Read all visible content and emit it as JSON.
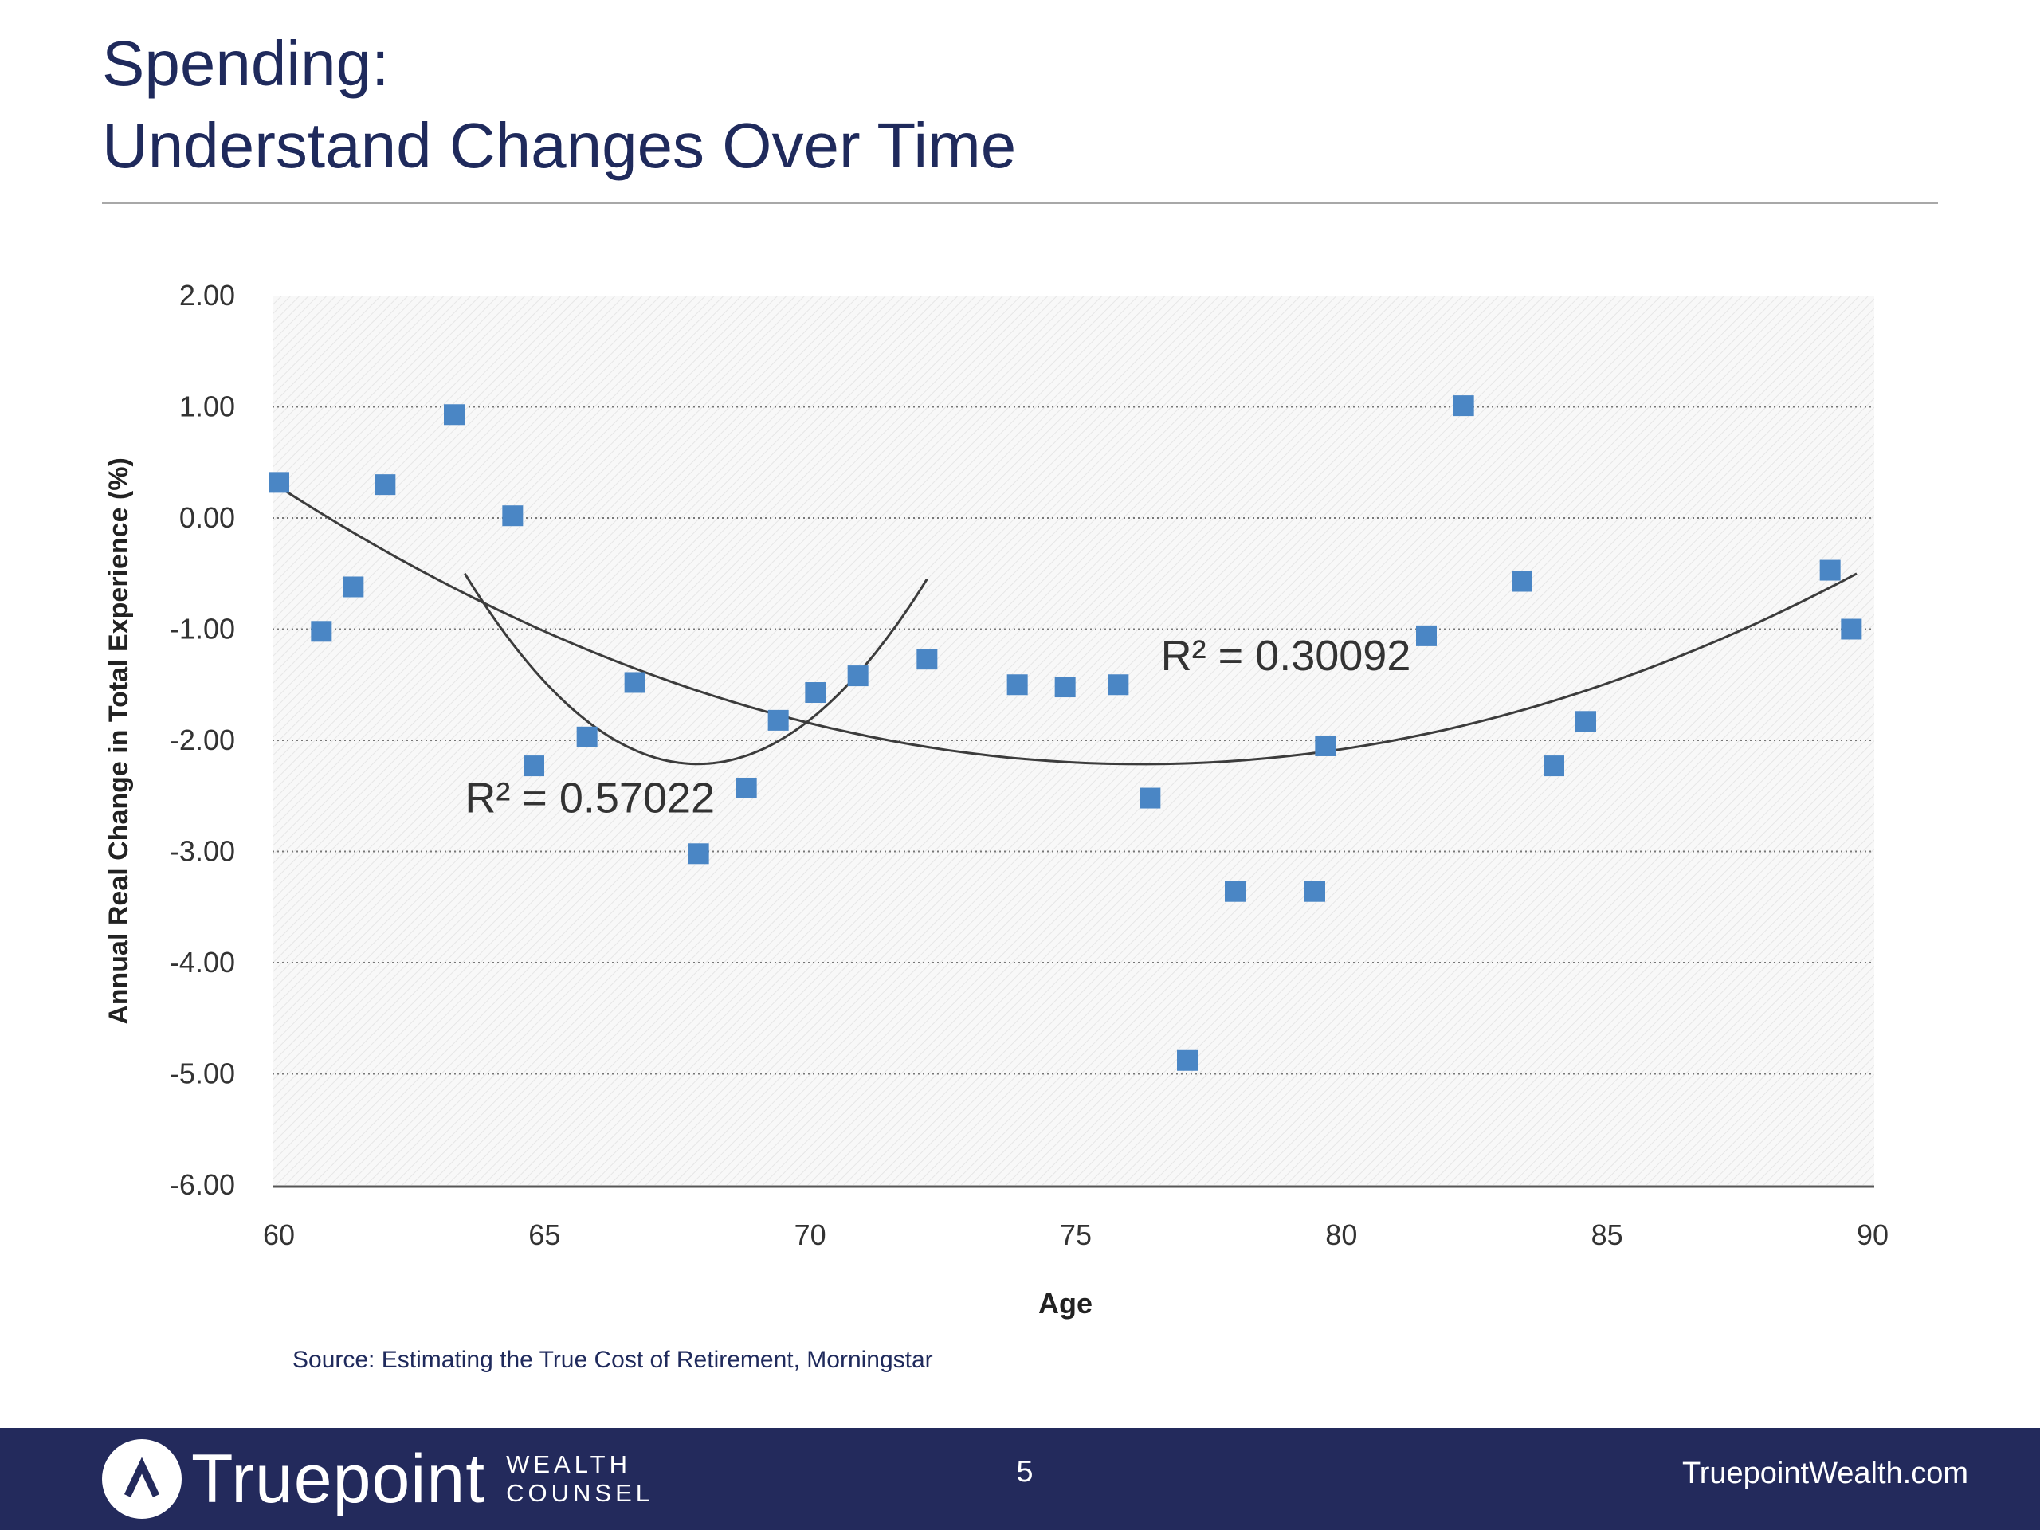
{
  "slide": {
    "title_line1": "Spending:",
    "title_line2": "Understand Changes Over Time"
  },
  "chart_data": {
    "type": "scatter",
    "title": "",
    "xlabel": "Age",
    "ylabel": "Annual Real Change in Total Experience (%)",
    "xlim": [
      60,
      90
    ],
    "ylim": [
      -6,
      2
    ],
    "x_ticks": [
      "60",
      "65",
      "70",
      "75",
      "80",
      "85",
      "90"
    ],
    "y_ticks": [
      "2.00",
      "1.00",
      "0.00",
      "-1.00",
      "-2.00",
      "-3.00",
      "-4.00",
      "-5.00",
      "-6.00"
    ],
    "grid": "horizontal dotted",
    "marker_color": "#4a86c5",
    "points": [
      {
        "x": 60.0,
        "y": 0.32
      },
      {
        "x": 60.8,
        "y": -1.02
      },
      {
        "x": 61.4,
        "y": -0.62
      },
      {
        "x": 62.0,
        "y": 0.3
      },
      {
        "x": 63.3,
        "y": 0.93
      },
      {
        "x": 64.4,
        "y": 0.02
      },
      {
        "x": 64.8,
        "y": -2.23
      },
      {
        "x": 65.8,
        "y": -1.97
      },
      {
        "x": 66.7,
        "y": -1.48
      },
      {
        "x": 67.9,
        "y": -3.02
      },
      {
        "x": 68.8,
        "y": -2.43
      },
      {
        "x": 69.4,
        "y": -1.82
      },
      {
        "x": 70.1,
        "y": -1.57
      },
      {
        "x": 70.9,
        "y": -1.42
      },
      {
        "x": 72.2,
        "y": -1.27
      },
      {
        "x": 73.9,
        "y": -1.5
      },
      {
        "x": 74.8,
        "y": -1.52
      },
      {
        "x": 75.8,
        "y": -1.5
      },
      {
        "x": 76.4,
        "y": -2.52
      },
      {
        "x": 78.0,
        "y": -3.36
      },
      {
        "x": 77.1,
        "y": -4.88
      },
      {
        "x": 79.5,
        "y": -3.36
      },
      {
        "x": 79.7,
        "y": -2.05
      },
      {
        "x": 81.6,
        "y": -1.06
      },
      {
        "x": 82.3,
        "y": 1.01
      },
      {
        "x": 83.4,
        "y": -0.57
      },
      {
        "x": 84.0,
        "y": -2.23
      },
      {
        "x": 84.6,
        "y": -1.83
      },
      {
        "x": 89.2,
        "y": -0.47
      },
      {
        "x": 89.6,
        "y": -1.0
      }
    ],
    "trendlines": [
      {
        "label": "R² = 0.57022",
        "r2": "0.57022",
        "x": [
          63.5,
          67.5,
          72.2
        ],
        "y": [
          -0.5,
          -2.2,
          -0.55
        ]
      },
      {
        "label": "R² = 0.30092",
        "r2": "0.30092",
        "x": [
          60.0,
          75.0,
          89.7
        ],
        "y": [
          0.28,
          -2.2,
          -0.5
        ]
      }
    ],
    "annotations": [
      {
        "text": "R² = 0.57022",
        "x": 63.5,
        "y": -2.65
      },
      {
        "text": "R² = 0.30092",
        "x": 76.6,
        "y": -1.37
      }
    ]
  },
  "source": {
    "text": "Source: Estimating the True Cost of Retirement, Morningstar"
  },
  "footer": {
    "brand_name": "Truepoint",
    "brand_sub_line1": "WEALTH",
    "brand_sub_line2": "COUNSEL",
    "page_number": "5",
    "website": "TruepointWealth.com",
    "background_color": "#232a5c"
  }
}
